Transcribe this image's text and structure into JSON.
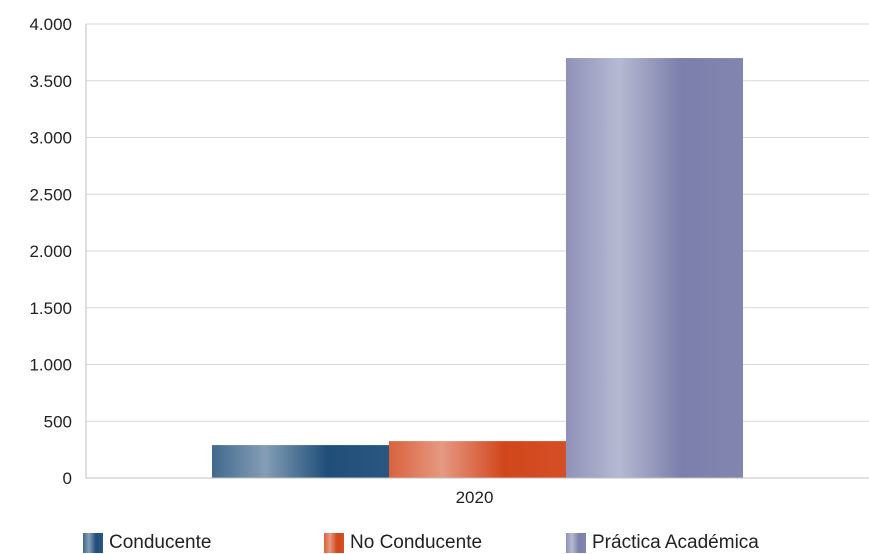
{
  "chart_data": {
    "type": "bar",
    "categories": [
      "2020"
    ],
    "series": [
      {
        "name": "Conducente",
        "values": [
          290
        ],
        "color": "#1f4e79"
      },
      {
        "name": "No Conducente",
        "values": [
          325
        ],
        "color": "#d2461b"
      },
      {
        "name": "Práctica Académica",
        "values": [
          3700
        ],
        "color": "#7b7fab"
      }
    ],
    "ylim": [
      0,
      4000
    ],
    "yticks": [
      0,
      500,
      1000,
      1500,
      2000,
      2500,
      3000,
      3500,
      4000
    ],
    "ytick_labels": [
      "0",
      "500",
      "1.000",
      "1.500",
      "2.000",
      "2.500",
      "3.000",
      "3.500",
      "4.000"
    ],
    "title": "",
    "xlabel": "",
    "ylabel": "",
    "grid": true,
    "legend_position": "bottom"
  }
}
